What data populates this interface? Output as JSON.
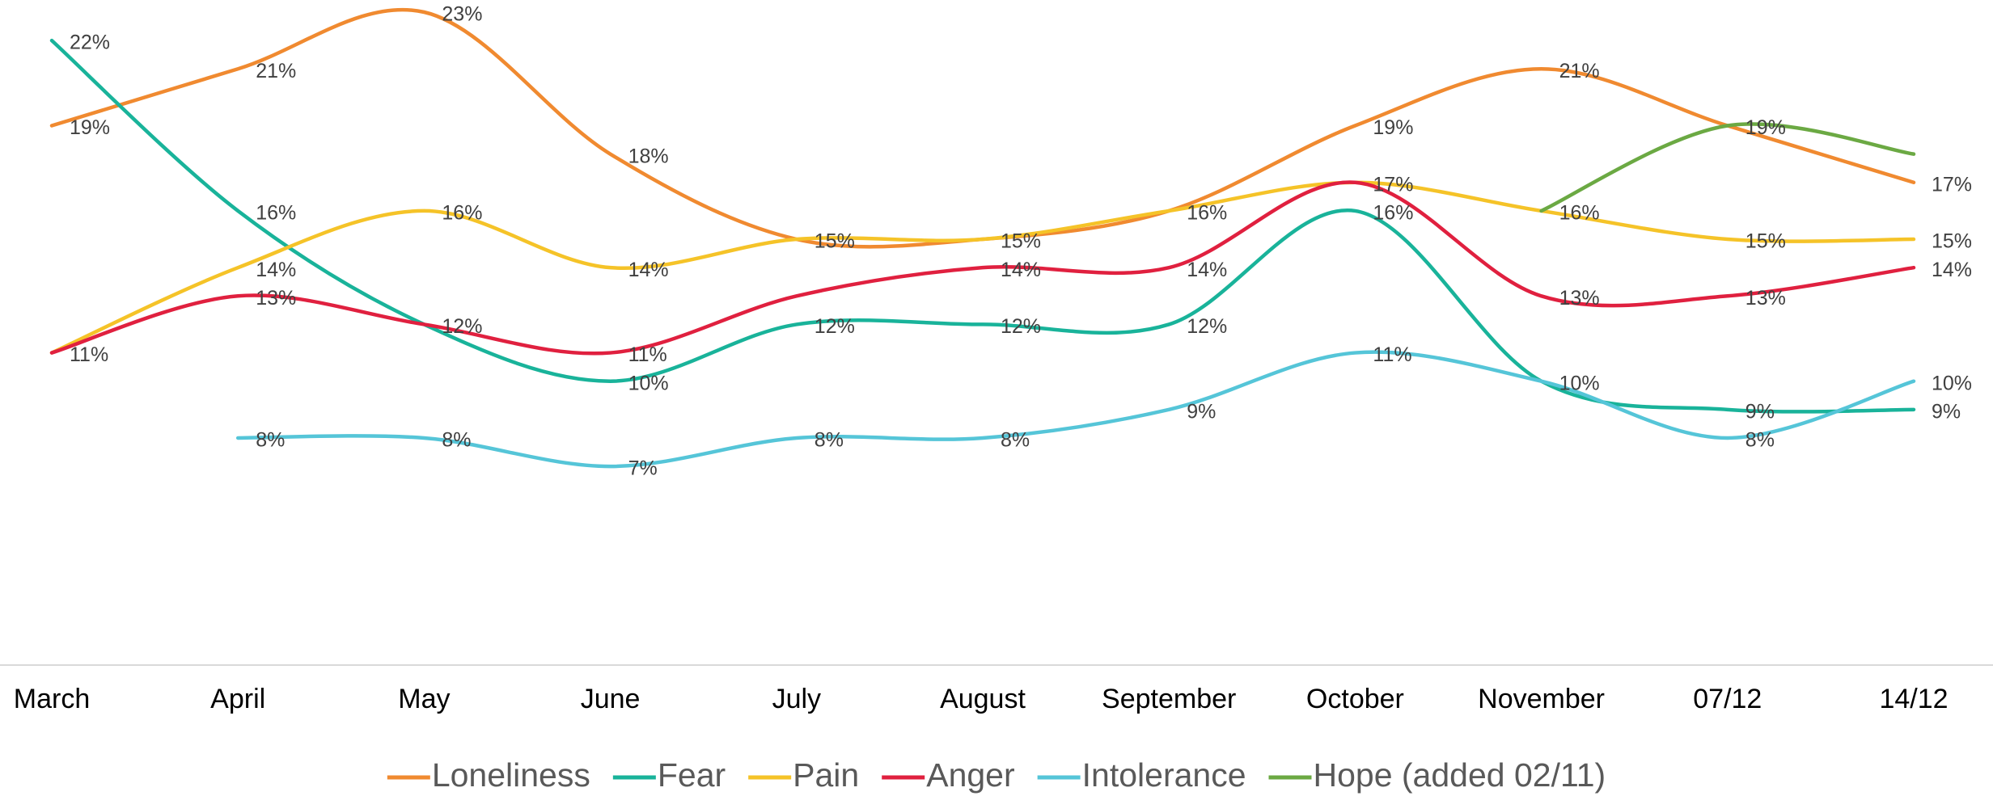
{
  "chart_data": {
    "type": "line",
    "categories": [
      "March",
      "April",
      "May",
      "June",
      "July",
      "August",
      "September",
      "October",
      "November",
      "07/12",
      "14/12"
    ],
    "series": [
      {
        "name": "Loneliness",
        "color": "#f08a30",
        "values": [
          19,
          21,
          23,
          18,
          15,
          15,
          16,
          19,
          21,
          19,
          17
        ],
        "value_labels": [
          "19%",
          "21%",
          "23%",
          "18%",
          "15%",
          null,
          null,
          "19%",
          "21%",
          null,
          "17%"
        ]
      },
      {
        "name": "Fear",
        "color": "#19b39a",
        "values": [
          22,
          16,
          12,
          10,
          12,
          12,
          12,
          16,
          10,
          9,
          9
        ],
        "value_labels": [
          "22%",
          "16%",
          null,
          "10%",
          "12%",
          "12%",
          "12%",
          "16%",
          "10%",
          "9%",
          "9%"
        ]
      },
      {
        "name": "Pain",
        "color": "#f5c328",
        "values": [
          11,
          14,
          16,
          14,
          15,
          15,
          16,
          17,
          16,
          15,
          15
        ],
        "value_labels": [
          null,
          "14%",
          "16%",
          "14%",
          null,
          "15%",
          "16%",
          "17%",
          "16%",
          "15%",
          "15%"
        ]
      },
      {
        "name": "Anger",
        "color": "#e0203f",
        "values": [
          11,
          13,
          12,
          11,
          13,
          14,
          14,
          17,
          13,
          13,
          14
        ],
        "value_labels": [
          "11%",
          "13%",
          "12%",
          "11%",
          null,
          "14%",
          "14%",
          null,
          "13%",
          "13%",
          "14%"
        ]
      },
      {
        "name": "Intolerance",
        "color": "#55c5d8",
        "values": [
          null,
          8,
          8,
          7,
          8,
          8,
          9,
          11,
          10,
          8,
          10
        ],
        "value_labels": [
          null,
          "8%",
          "8%",
          "7%",
          "8%",
          "8%",
          "9%",
          "11%",
          null,
          "8%",
          "10%"
        ]
      },
      {
        "name": "Hope (added 02/11)",
        "color": "#6ba943",
        "values": [
          null,
          null,
          null,
          null,
          null,
          null,
          null,
          null,
          16,
          19,
          18
        ],
        "value_labels": [
          null,
          null,
          null,
          null,
          null,
          null,
          null,
          null,
          null,
          "19%",
          null
        ]
      }
    ],
    "legend": "bottom"
  }
}
